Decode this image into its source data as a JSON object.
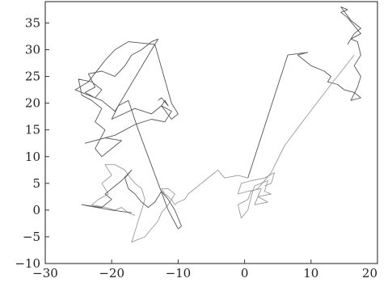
{
  "chart_data": {
    "type": "line",
    "title": "",
    "xlabel": "",
    "ylabel": "",
    "xlim": [
      -30,
      20
    ],
    "ylim": [
      -10,
      39
    ],
    "grid": false,
    "legend": "none",
    "x_ticks": [
      -30,
      -20,
      -10,
      0,
      10,
      20
    ],
    "y_ticks": [
      -10,
      -5,
      0,
      5,
      10,
      15,
      20,
      25,
      30,
      35
    ],
    "x_tick_labels": [
      "−30",
      "−20",
      "−10",
      "0",
      "10",
      "20"
    ],
    "y_tick_labels": [
      "−10",
      "−5",
      "0",
      "5",
      "10",
      "15",
      "20",
      "25",
      "30",
      "35"
    ],
    "colors": {
      "trace_dark": "#555555",
      "trace_light": "#9a9a9a",
      "axes": "#333333"
    },
    "series": [
      {
        "color": "#555555",
        "points": [
          [
            0.5,
            6
          ],
          [
            6.5,
            29
          ],
          [
            9.5,
            29.5
          ],
          [
            8,
            29
          ],
          [
            10,
            27
          ],
          [
            12,
            26
          ],
          [
            13,
            25
          ],
          [
            12.5,
            24
          ],
          [
            14,
            23.5
          ],
          [
            15,
            22.5
          ],
          [
            16.5,
            22
          ],
          [
            17.5,
            21
          ],
          [
            16,
            20.5
          ],
          [
            17,
            23
          ],
          [
            17.5,
            25
          ],
          [
            16.5,
            27
          ],
          [
            17.5,
            29
          ],
          [
            17,
            31.5
          ],
          [
            16,
            32
          ],
          [
            17.5,
            33
          ],
          [
            16.5,
            34.5
          ],
          [
            15.5,
            36
          ],
          [
            14.5,
            37
          ],
          [
            15.5,
            37.5
          ],
          [
            14.5,
            38
          ],
          [
            16,
            35.5
          ],
          [
            17.5,
            34
          ],
          [
            16.5,
            33
          ],
          [
            15.5,
            31
          ]
        ]
      },
      {
        "color": "#9a9a9a",
        "points": [
          [
            0.5,
            6
          ],
          [
            -1,
            6.5
          ],
          [
            -3,
            6
          ],
          [
            -4,
            7.5
          ],
          [
            -5,
            6.5
          ],
          [
            -6.5,
            5
          ],
          [
            -7.5,
            4
          ],
          [
            -8.5,
            3
          ],
          [
            -9,
            2
          ],
          [
            -10,
            1.5
          ],
          [
            -10.5,
            1
          ],
          [
            -11,
            2
          ],
          [
            -12,
            3
          ],
          [
            -12.5,
            4
          ],
          [
            -11.5,
            4
          ],
          [
            -11,
            3.5
          ],
          [
            -10.5,
            3
          ],
          [
            -11.5,
            1
          ],
          [
            -12.5,
            -0.5
          ],
          [
            -13,
            -2
          ],
          [
            -14,
            -3.5
          ],
          [
            -15,
            -5
          ],
          [
            -16,
            -5.5
          ],
          [
            -17,
            -6
          ],
          [
            -16.5,
            -4
          ],
          [
            -16,
            -2
          ],
          [
            -15.5,
            0
          ],
          [
            -15,
            2
          ],
          [
            -15.5,
            4
          ],
          [
            -16.5,
            5
          ],
          [
            -17.5,
            6.5
          ],
          [
            -18,
            7.5
          ],
          [
            -19.5,
            8.5
          ],
          [
            -21,
            8.5
          ],
          [
            -20,
            6.5
          ],
          [
            -21.5,
            5
          ],
          [
            -20.5,
            3
          ],
          [
            -22,
            2
          ],
          [
            -23,
            1
          ],
          [
            -21,
            0.5
          ],
          [
            -19.5,
            0
          ],
          [
            -18.5,
            0.5
          ],
          [
            -17.5,
            -0.5
          ],
          [
            -16.5,
            -1
          ]
        ]
      },
      {
        "color": "#555555",
        "points": [
          [
            -17.5,
            20.5
          ],
          [
            -16,
            15
          ],
          [
            -14.5,
            10
          ],
          [
            -13,
            5
          ],
          [
            -11.5,
            0
          ],
          [
            -10,
            -3.5
          ],
          [
            -9.5,
            -3
          ],
          [
            -10.5,
            0
          ],
          [
            -11.5,
            2
          ],
          [
            -12.5,
            3.5
          ],
          [
            -13.5,
            1.5
          ],
          [
            -14.5,
            0.5
          ],
          [
            -15.5,
            1.5
          ],
          [
            -16.5,
            3
          ],
          [
            -17.5,
            4
          ],
          [
            -18,
            6
          ],
          [
            -17,
            7.5
          ],
          [
            -18.5,
            5.5
          ],
          [
            -20,
            4
          ],
          [
            -21,
            3
          ],
          [
            -20,
            2
          ],
          [
            -21.5,
            0.5
          ],
          [
            -24.5,
            1
          ],
          [
            -20,
            0
          ],
          [
            -17,
            -0.5
          ]
        ]
      },
      {
        "color": "#555555",
        "points": [
          [
            -17.5,
            20.5
          ],
          [
            -19,
            19.5
          ],
          [
            -20,
            17
          ],
          [
            -16.5,
            19
          ],
          [
            -14,
            18
          ],
          [
            -12.5,
            19.5
          ],
          [
            -11,
            18.5
          ],
          [
            -12,
            16.5
          ],
          [
            -14,
            17
          ],
          [
            -16.5,
            16
          ],
          [
            -19.5,
            14
          ],
          [
            -24,
            12.5
          ],
          [
            -21,
            13.5
          ],
          [
            -18.5,
            13
          ],
          [
            -21.5,
            10
          ],
          [
            -22.5,
            11.5
          ],
          [
            -21,
            15
          ],
          [
            -22.5,
            16.5
          ],
          [
            -21.5,
            19
          ],
          [
            -23,
            20.5
          ],
          [
            -24.5,
            21.5
          ],
          [
            -25,
            24.5
          ],
          [
            -23,
            24
          ],
          [
            -21.5,
            22.5
          ],
          [
            -22.5,
            21
          ],
          [
            -24,
            22
          ],
          [
            -22.5,
            23
          ],
          [
            -23.5,
            25.5
          ],
          [
            -21.5,
            26
          ],
          [
            -19.5,
            25
          ],
          [
            -18,
            27
          ],
          [
            -17,
            29
          ],
          [
            -15.5,
            30
          ],
          [
            -14,
            31.5
          ],
          [
            -13,
            32
          ],
          [
            -13.5,
            31
          ],
          [
            -17.5,
            31.5
          ],
          [
            -19.5,
            30
          ],
          [
            -21,
            28
          ],
          [
            -23.5,
            24
          ],
          [
            -25.5,
            22.5
          ],
          [
            -23.5,
            21.5
          ],
          [
            -21.5,
            20.5
          ],
          [
            -19.5,
            18.5
          ],
          [
            -13.5,
            31
          ],
          [
            -11,
            20
          ],
          [
            -10,
            18
          ],
          [
            -11,
            17
          ],
          [
            -12.5,
            19.5
          ],
          [
            -12,
            20.5
          ],
          [
            -11.5,
            19.5
          ],
          [
            -12.5,
            21
          ],
          [
            -13,
            20.5
          ]
        ]
      },
      {
        "color": "#9a9a9a",
        "points": [
          [
            16.5,
            29
          ],
          [
            13,
            23.5
          ],
          [
            9,
            17
          ],
          [
            6,
            12
          ],
          [
            4,
            7
          ],
          [
            2,
            4
          ],
          [
            1,
            3.5
          ],
          [
            0.5,
            2
          ],
          [
            -1,
            1
          ],
          [
            -0.5,
            -1.5
          ],
          [
            0.5,
            0
          ],
          [
            1,
            2.5
          ],
          [
            1.5,
            4.5
          ],
          [
            3.5,
            5.5
          ],
          [
            3,
            3.5
          ],
          [
            4,
            3
          ],
          [
            2,
            2.5
          ],
          [
            3.5,
            1.5
          ],
          [
            1.5,
            1
          ],
          [
            2.5,
            4
          ],
          [
            0.5,
            3.5
          ],
          [
            -1,
            3
          ],
          [
            -0.5,
            5
          ],
          [
            1,
            5.5
          ],
          [
            3,
            6
          ],
          [
            4.5,
            7
          ],
          [
            4,
            5
          ],
          [
            3,
            4.5
          ]
        ]
      }
    ]
  }
}
